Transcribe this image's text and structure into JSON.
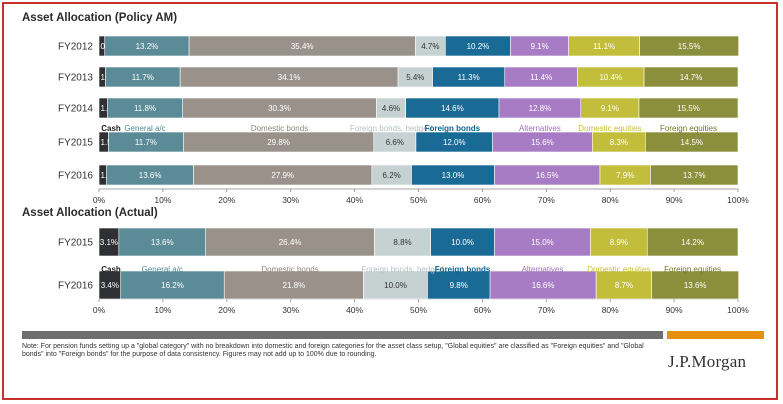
{
  "titles": {
    "policy": "Asset Allocation (Policy AM)",
    "actual": "Asset Allocation (Actual)"
  },
  "legend_labels": [
    "Cash",
    "General a/c",
    "Domestic bonds",
    "Foreign bonds, hedged",
    "Foreign bonds",
    "Alternatives",
    "Domestic equities",
    "Foreign equities"
  ],
  "note": "Note: For pension funds setting up a \"global category\" with no breakdown into domestic and foreign categories for the asset class setup, \"Global equities\" are classified as \"Foreign equities\" and \"Global bonds\" into \"Foreign bonds\" for the purpose of data consistency. Figures may not add up to 100% due to rounding.",
  "logo": "J.P.Morgan",
  "colors": {
    "Cash": "#2f3033",
    "General a/c": "#5a8b97",
    "Domestic bonds": "#9a928a",
    "Foreign bonds, hedged": "#c6d2d2",
    "Foreign bonds": "#1a6a96",
    "Alternatives": "#a87cc4",
    "Domestic equities": "#c3bd3c",
    "Foreign equities": "#8b8f3c",
    "legend_text": {
      "Cash": "#222222",
      "General a/c": "#4f8794",
      "Domestic bonds": "#8e857b",
      "Foreign bonds, hedged": "#b5bfc0",
      "Foreign bonds": "#14628d",
      "Alternatives": "#9c70ba",
      "Domestic equities": "#c8bf2b",
      "Foreign equities": "#6f7524"
    }
  },
  "chart_data": [
    {
      "type": "bar",
      "orientation": "horizontal",
      "stacked": true,
      "title": "Asset Allocation (Policy AM)",
      "categories": [
        "FY2012",
        "FY2013",
        "FY2014",
        "FY2015",
        "FY2016"
      ],
      "xlim": [
        0,
        100
      ],
      "xticks": [
        "0%",
        "10%",
        "20%",
        "30%",
        "40%",
        "50%",
        "60%",
        "70%",
        "80%",
        "90%",
        "100%"
      ],
      "series": [
        {
          "name": "Cash",
          "values": [
            0.9,
            1.0,
            1.3,
            1.5,
            1.2
          ],
          "labels": [
            "0.9%",
            "1.0%",
            "1.3%",
            "1.5%",
            "1.2%"
          ]
        },
        {
          "name": "General a/c",
          "values": [
            13.2,
            11.7,
            11.8,
            11.7,
            13.6
          ],
          "labels": [
            "13.2%",
            "11.7%",
            "11.8%",
            "11.7%",
            "13.6%"
          ]
        },
        {
          "name": "Domestic bonds",
          "values": [
            35.4,
            34.1,
            30.3,
            29.8,
            27.9
          ],
          "labels": [
            "35.4%",
            "34.1%",
            "30.3%",
            "29.8%",
            "27.9%"
          ]
        },
        {
          "name": "Foreign bonds, hedged",
          "values": [
            4.7,
            5.4,
            4.6,
            6.6,
            6.2
          ],
          "labels": [
            "4.7%",
            "5.4%",
            "4.6%",
            "6.6%",
            "6.2%"
          ]
        },
        {
          "name": "Foreign bonds",
          "values": [
            10.2,
            11.3,
            14.6,
            12.0,
            13.0
          ],
          "labels": [
            "10.2%",
            "11.3%",
            "14.6%",
            "12.0%",
            "13.0%"
          ]
        },
        {
          "name": "Alternatives",
          "values": [
            9.1,
            11.4,
            12.8,
            15.6,
            16.5
          ],
          "labels": [
            "9.1%",
            "11.4%",
            "12.8%",
            "15.6%",
            "16.5%"
          ]
        },
        {
          "name": "Domestic equities",
          "values": [
            11.1,
            10.4,
            9.1,
            8.3,
            7.9
          ],
          "labels": [
            "11.1%",
            "10.4%",
            "9.1%",
            "8.3%",
            "7.9%"
          ]
        },
        {
          "name": "Foreign equities",
          "values": [
            15.5,
            14.7,
            15.5,
            14.5,
            13.7
          ],
          "labels": [
            "15.5%",
            "14.7%",
            "15.5%",
            "14.5%",
            "13.7%"
          ]
        }
      ],
      "legend_after_category_index": 2
    },
    {
      "type": "bar",
      "orientation": "horizontal",
      "stacked": true,
      "title": "Asset Allocation (Actual)",
      "categories": [
        "FY2015",
        "FY2016"
      ],
      "xlim": [
        0,
        100
      ],
      "xticks": [
        "0%",
        "10%",
        "20%",
        "30%",
        "40%",
        "50%",
        "60%",
        "70%",
        "80%",
        "90%",
        "100%"
      ],
      "series": [
        {
          "name": "Cash",
          "values": [
            3.1,
            3.4
          ],
          "labels": [
            "3.1%",
            "3.4%"
          ]
        },
        {
          "name": "General a/c",
          "values": [
            13.6,
            16.2
          ],
          "labels": [
            "13.6%",
            "16.2%"
          ]
        },
        {
          "name": "Domestic bonds",
          "values": [
            26.4,
            21.8
          ],
          "labels": [
            "26.4%",
            "21.8%"
          ]
        },
        {
          "name": "Foreign bonds, hedged",
          "values": [
            8.8,
            10.0
          ],
          "labels": [
            "8.8%",
            "10.0%"
          ]
        },
        {
          "name": "Foreign bonds",
          "values": [
            10.0,
            9.8
          ],
          "labels": [
            "10.0%",
            "9.8%"
          ]
        },
        {
          "name": "Alternatives",
          "values": [
            15.0,
            16.6
          ],
          "labels": [
            "15.0%",
            "16.6%"
          ]
        },
        {
          "name": "Domestic equities",
          "values": [
            8.9,
            8.7
          ],
          "labels": [
            "8.9%",
            "8.7%"
          ]
        },
        {
          "name": "Foreign equities",
          "values": [
            14.2,
            13.6
          ],
          "labels": [
            "14.2%",
            "13.6%"
          ]
        }
      ],
      "legend_after_category_index": 0
    }
  ]
}
